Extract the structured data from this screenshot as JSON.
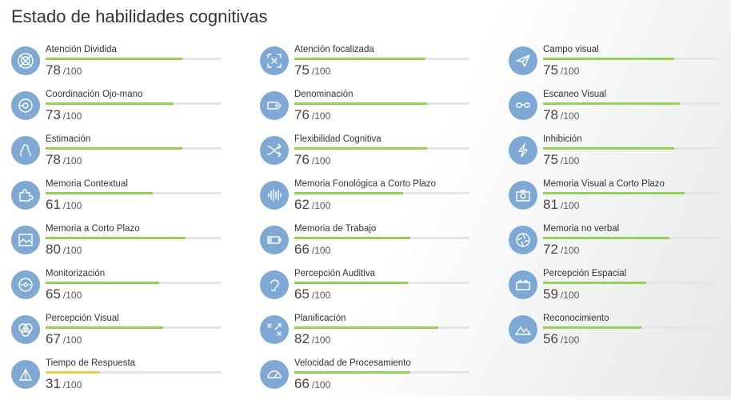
{
  "page": {
    "title": "Estado de habilidades cognitivas"
  },
  "colors": {
    "bar_fill": "#96d14f",
    "bar_fill_low": "#e6d24a",
    "bar_track": "#e5e5e5",
    "icon_bg": "#7ea9d4"
  },
  "skills": [
    {
      "name": "Atención Dividida",
      "score": "78",
      "max": "/100",
      "icon": "target-icon"
    },
    {
      "name": "Coordinación Ojo-mano",
      "score": "73",
      "max": "/100",
      "icon": "eye-hand-icon"
    },
    {
      "name": "Estimación",
      "score": "78",
      "max": "/100",
      "icon": "path-curve-icon"
    },
    {
      "name": "Memoria Contextual",
      "score": "61",
      "max": "/100",
      "icon": "puzzle-icon"
    },
    {
      "name": "Memoria a Corto Plazo",
      "score": "80",
      "max": "/100",
      "icon": "image-icon"
    },
    {
      "name": "Monitorización",
      "score": "65",
      "max": "/100",
      "icon": "monitor-eye-icon"
    },
    {
      "name": "Percepción Visual",
      "score": "67",
      "max": "/100",
      "icon": "circles-icon"
    },
    {
      "name": "Tiempo de Respuesta",
      "score": "31",
      "max": "/100",
      "icon": "timer-icon",
      "low": true
    },
    {
      "name": "Atención focalizada",
      "score": "75",
      "max": "/100",
      "icon": "focus-icon"
    },
    {
      "name": "Denominación",
      "score": "76",
      "max": "/100",
      "icon": "tag-icon"
    },
    {
      "name": "Flexibilidad Cognitiva",
      "score": "76",
      "max": "/100",
      "icon": "shuffle-icon"
    },
    {
      "name": "Memoria Fonológica a Corto Plazo",
      "score": "62",
      "max": "/100",
      "icon": "soundwave-icon"
    },
    {
      "name": "Memoria de Trabajo",
      "score": "66",
      "max": "/100",
      "icon": "battery-icon"
    },
    {
      "name": "Percepción Auditiva",
      "score": "65",
      "max": "/100",
      "icon": "ear-icon"
    },
    {
      "name": "Planificación",
      "score": "82",
      "max": "/100",
      "icon": "strategy-icon"
    },
    {
      "name": "Velocidad de Procesamiento",
      "score": "66",
      "max": "/100",
      "icon": "speedometer-icon"
    },
    {
      "name": "Campo visual",
      "score": "75",
      "max": "/100",
      "icon": "paper-plane-icon"
    },
    {
      "name": "Escaneo Visual",
      "score": "78",
      "max": "/100",
      "icon": "glasses-icon"
    },
    {
      "name": "Inhibición",
      "score": "75",
      "max": "/100",
      "icon": "lightning-icon"
    },
    {
      "name": "Memoria Visual a Corto Plazo",
      "score": "81",
      "max": "/100",
      "icon": "camera-icon"
    },
    {
      "name": "Memoria no verbal",
      "score": "72",
      "max": "/100",
      "icon": "aperture-icon"
    },
    {
      "name": "Percepción Espacial",
      "score": "59",
      "max": "/100",
      "icon": "box-icon"
    },
    {
      "name": "Reconocimiento",
      "score": "56",
      "max": "/100",
      "icon": "mountains-icon"
    }
  ]
}
